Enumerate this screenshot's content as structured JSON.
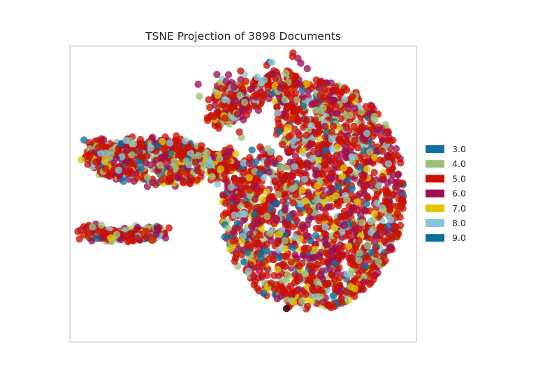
{
  "chart_data": {
    "type": "scatter",
    "title": "TSNE Projection of 3898 Documents",
    "xlabel": "",
    "ylabel": "",
    "grid": false,
    "axes_ticks": false,
    "legend_placement": "right",
    "total_points": 3898,
    "series": [
      {
        "name": "3.0",
        "color": "#1170a3"
      },
      {
        "name": "4.0",
        "color": "#9dbf77"
      },
      {
        "name": "5.0",
        "color": "#cc1100"
      },
      {
        "name": "6.0",
        "color": "#9c0f53"
      },
      {
        "name": "7.0",
        "color": "#dcc800"
      },
      {
        "name": "8.0",
        "color": "#85c7d6"
      },
      {
        "name": "9.0",
        "color": "#0a6f9a"
      }
    ]
  }
}
